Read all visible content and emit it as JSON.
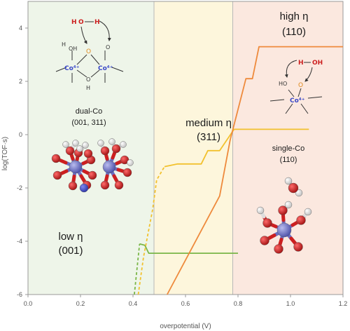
{
  "chart_data": {
    "type": "line",
    "xlabel": "overpotential (V)",
    "ylabel": "log(TOF·s)",
    "xlim": [
      0.0,
      1.2
    ],
    "ylim": [
      -6,
      5
    ],
    "x_ticks": [
      "0.0",
      "0.2",
      "0.4",
      "0.6",
      "0.8",
      "1.0",
      "1.2"
    ],
    "y_ticks": [
      "-6",
      "-4",
      "-2",
      "0",
      "2",
      "4"
    ],
    "regions": [
      {
        "id": "low",
        "x_range": [
          0.0,
          0.48
        ],
        "color": "#eef5e9",
        "title_line1": "low η",
        "title_line2": "(001)",
        "site_label_line1": "dual-Co",
        "site_label_line2": "(001, 311)"
      },
      {
        "id": "medium",
        "x_range": [
          0.48,
          0.78
        ],
        "color": "#fdf6dc",
        "title_line1": "medium η",
        "title_line2": "(311)"
      },
      {
        "id": "high",
        "x_range": [
          0.78,
          1.2
        ],
        "color": "#fbe8df",
        "title_line1": "high η",
        "title_line2": "(110)",
        "site_label_line1": "single-Co",
        "site_label_line2": "(110)"
      }
    ],
    "series": [
      {
        "color": "#7ab648",
        "segments": [
          {
            "style": "dashed",
            "points": [
              [
                0.405,
                -6.0
              ],
              [
                0.425,
                -4.1
              ]
            ]
          },
          {
            "style": "solid",
            "points": [
              [
                0.425,
                -4.1
              ],
              [
                0.445,
                -4.15
              ],
              [
                0.46,
                -4.45
              ],
              [
                0.8,
                -4.45
              ]
            ]
          }
        ]
      },
      {
        "color": "#f2c12e",
        "segments": [
          {
            "style": "dashed",
            "points": [
              [
                0.42,
                -6.0
              ],
              [
                0.44,
                -4.6
              ],
              [
                0.475,
                -2.8
              ],
              [
                0.49,
                -1.7
              ],
              [
                0.52,
                -1.2
              ]
            ]
          },
          {
            "style": "solid",
            "points": [
              [
                0.52,
                -1.2
              ],
              [
                0.57,
                -1.1
              ],
              [
                0.66,
                -1.1
              ],
              [
                0.685,
                -0.6
              ],
              [
                0.73,
                -0.6
              ],
              [
                0.785,
                0.2
              ],
              [
                1.07,
                0.2
              ]
            ]
          }
        ]
      },
      {
        "color": "#ee8a3c",
        "segments": [
          {
            "style": "solid",
            "points": [
              [
                0.53,
                -6.0
              ],
              [
                0.73,
                -2.3
              ],
              [
                0.77,
                -0.2
              ],
              [
                0.83,
                2.1
              ],
              [
                0.855,
                2.1
              ],
              [
                0.88,
                3.3
              ],
              [
                1.2,
                3.3
              ]
            ]
          }
        ]
      }
    ],
    "mechanism_text": {
      "water_o": "O",
      "water_h_left": "H",
      "water_h_right": "H",
      "dual_co_left": "Co⁴⁺",
      "dual_co_right": "Co⁴⁺",
      "h": "H",
      "oh": "OH",
      "o": "O",
      "ho": "HO",
      "single_co": "Co⁴⁺",
      "dots": "··"
    },
    "colors": {
      "co": "#6b6fc4",
      "o": "#cc1f1f",
      "h": "#f4f4f4",
      "n": "#3a48c8",
      "frame": "#999999"
    }
  }
}
